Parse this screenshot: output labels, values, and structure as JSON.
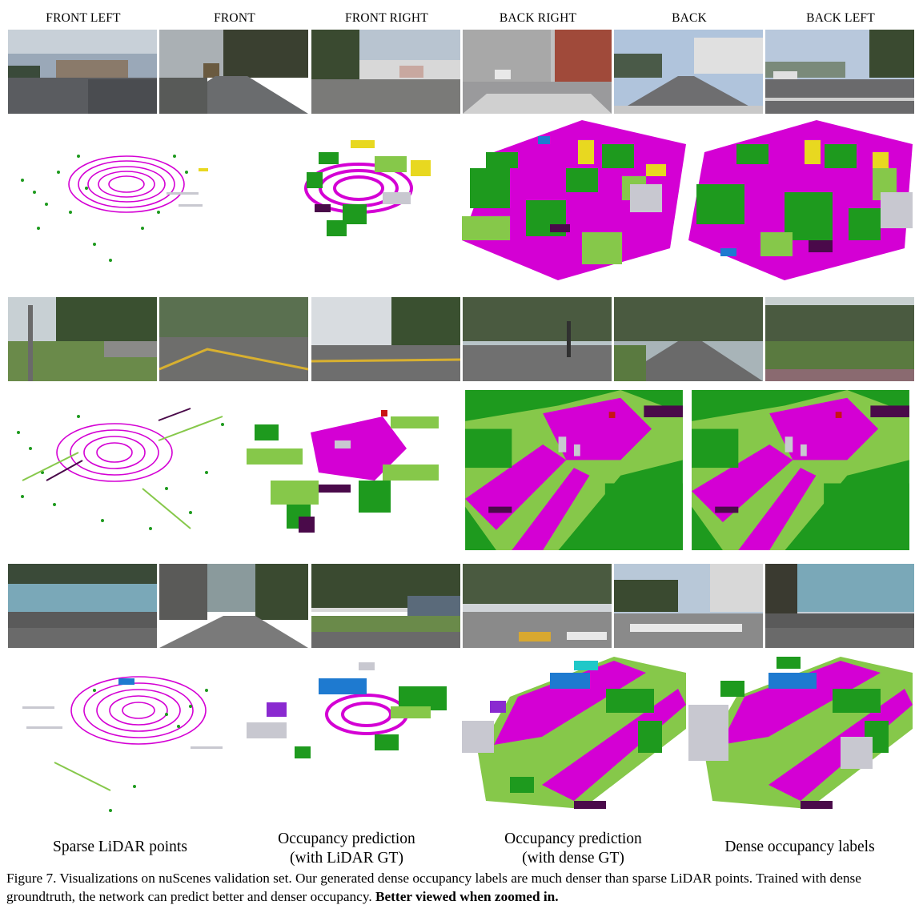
{
  "camera_labels": [
    "FRONT LEFT",
    "FRONT",
    "FRONT RIGHT",
    "BACK RIGHT",
    "BACK",
    "BACK LEFT"
  ],
  "column_labels": [
    {
      "line1": "Sparse LiDAR points",
      "line2": ""
    },
    {
      "line1": "Occupancy prediction",
      "line2": "(with LiDAR GT)"
    },
    {
      "line1": "Occupancy prediction",
      "line2": "(with dense GT)"
    },
    {
      "line1": "Dense occupancy labels",
      "line2": ""
    }
  ],
  "caption": {
    "prefix": "Figure 7. Visualizations on nuScenes validation set. Our generated dense occupancy labels are much denser than sparse LiDAR points. Trained with dense groundtruth, the network can predict better and denser occupancy.",
    "emphasis": "Better viewed when zoomed in."
  },
  "colors": {
    "drivable": "#d400d4",
    "vegetation": "#1e9a1e",
    "terrain": "#86c84a",
    "sidewalk": "#4a0a4a",
    "manmade": "#c8c8d0",
    "car": "#1e7ad0",
    "truck": "#e8d820",
    "barrier": "#c81414"
  }
}
